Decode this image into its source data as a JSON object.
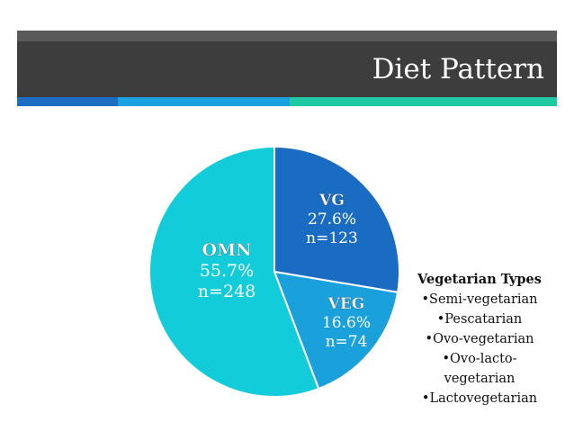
{
  "slide": {
    "title": "Diet Pattern",
    "colors": {
      "top_strip": "#5a5a5a",
      "header": "#3d3d3d",
      "accent_1": "#1b6ec2",
      "accent_2": "#1ba1e2",
      "accent_3": "#1fc9a1"
    }
  },
  "chart_data": {
    "type": "pie",
    "title": "",
    "start": "12 o'clock",
    "direction": "clockwise",
    "slices": [
      {
        "label": "VG",
        "percent_text": "27.6%",
        "n_text": "n=123",
        "value": 27.6,
        "n": 123,
        "color": "#1a6cc2"
      },
      {
        "label": "VEG",
        "percent_text": "16.6%",
        "n_text": "n=74",
        "value": 16.6,
        "n": 74,
        "color": "#1aa1dc"
      },
      {
        "label": "OMN",
        "percent_text": "55.7%",
        "n_text": "n=248",
        "value": 55.7,
        "n": 248,
        "color": "#12cdd9"
      }
    ],
    "label_color": "#ffffff"
  },
  "legend": {
    "title": "Vegetarian Types",
    "items": [
      "•Semi-vegetarian",
      "•Pescatarian",
      "•Ovo-vegetarian",
      "•Ovo-lacto-",
      "vegetarian",
      "•Lactovegetarian"
    ]
  }
}
